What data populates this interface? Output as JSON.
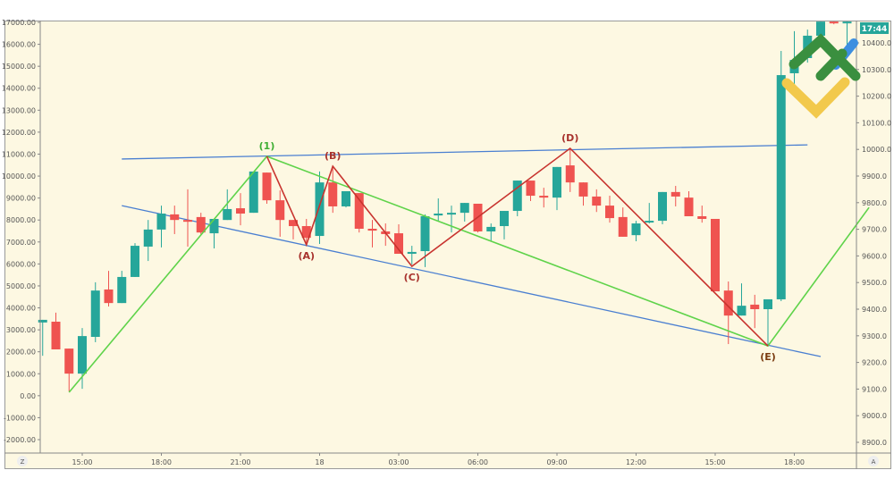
{
  "chart_data": {
    "type": "candlestick",
    "grid": false,
    "left_axis": {
      "ticks": [
        "17000.00",
        "16000.00",
        "15000.00",
        "14000.00",
        "13000.00",
        "12000.00",
        "11000.00",
        "10000.00",
        "9000.00",
        "8000.00",
        "7000.00",
        "6000.00",
        "5000.00",
        "4000.00",
        "3000.00",
        "2000.00",
        "1000.00",
        "0.00",
        "-1000.00",
        "-2000.00"
      ],
      "range": [
        -2000,
        17000
      ]
    },
    "right_axis": {
      "ticks": [
        "10400.0",
        "10300.0",
        "10200.0",
        "10100.0",
        "10000.0",
        "9900.0",
        "9800.0",
        "9700.0",
        "9600.0",
        "9500.0",
        "9400.0",
        "9300.0",
        "9200.0",
        "9100.0",
        "9000.0",
        "8900.0"
      ],
      "range": [
        8900,
        10400
      ]
    },
    "time_axis": {
      "ticks": [
        {
          "t": "17 15:00",
          "label": "15:00"
        },
        {
          "t": "17 18:00",
          "label": "18:00"
        },
        {
          "t": "17 21:00",
          "label": "21:00"
        },
        {
          "t": "18 00:00",
          "label": "18"
        },
        {
          "t": "18 03:00",
          "label": "03:00"
        },
        {
          "t": "18 06:00",
          "label": "06:00"
        },
        {
          "t": "18 09:00",
          "label": "09:00"
        },
        {
          "t": "18 12:00",
          "label": "12:00"
        },
        {
          "t": "18 15:00",
          "label": "15:00"
        },
        {
          "t": "18 18:00",
          "label": "18:00"
        }
      ]
    },
    "price_tag": "17:44",
    "corner_left": "Z",
    "corner_right": "A",
    "colors": {
      "up": "#26a69a",
      "down": "#ef5350",
      "trendline": "#4a7fd1",
      "wave_green": "#5fd34a",
      "wave_red": "#c8342f",
      "background": "#fdf8e2"
    },
    "candles_fields": [
      "time",
      "open",
      "high",
      "low",
      "close"
    ],
    "candles": [
      [
        "17 13:30",
        9350,
        9360,
        9225,
        9360
      ],
      [
        "17 14:00",
        9353,
        9387,
        9249,
        9249
      ],
      [
        "17 14:30",
        9252,
        9252,
        9091,
        9158
      ],
      [
        "17 15:00",
        9158,
        9329,
        9101,
        9299
      ],
      [
        "17 15:30",
        9296,
        9501,
        9276,
        9470
      ],
      [
        "17 16:00",
        9474,
        9544,
        9410,
        9423
      ],
      [
        "17 16:30",
        9423,
        9544,
        9423,
        9521
      ],
      [
        "17 17:00",
        9521,
        9648,
        9521,
        9638
      ],
      [
        "17 17:30",
        9635,
        9735,
        9581,
        9699
      ],
      [
        "17 18:00",
        9699,
        9789,
        9632,
        9759
      ],
      [
        "17 18:30",
        9756,
        9789,
        9682,
        9735
      ],
      [
        "17 19:00",
        9735,
        9850,
        9635,
        9729
      ],
      [
        "17 19:30",
        9746,
        9762,
        9682,
        9688
      ],
      [
        "17 20:00",
        9685,
        9739,
        9628,
        9739
      ],
      [
        "17 20:30",
        9735,
        9850,
        9735,
        9776
      ],
      [
        "17 21:00",
        9779,
        9836,
        9715,
        9759
      ],
      [
        "17 21:30",
        9762,
        9917,
        9762,
        9917
      ],
      [
        "17 22:00",
        9913,
        9913,
        9796,
        9809
      ],
      [
        "17 22:30",
        9809,
        9846,
        9672,
        9735
      ],
      [
        "17 23:00",
        9735,
        9735,
        9662,
        9712
      ],
      [
        "17 23:30",
        9712,
        9739,
        9645,
        9668
      ],
      [
        "18 00:00",
        9675,
        9917,
        9645,
        9876
      ],
      [
        "18 00:30",
        9876,
        9937,
        9762,
        9786
      ],
      [
        "18 01:00",
        9786,
        9843,
        9782,
        9843
      ],
      [
        "18 01:30",
        9836,
        9836,
        9688,
        9702
      ],
      [
        "18 02:00",
        9702,
        9735,
        9632,
        9695
      ],
      [
        "18 02:30",
        9692,
        9722,
        9638,
        9682
      ],
      [
        "18 03:00",
        9685,
        9719,
        9608,
        9608
      ],
      [
        "18 03:30",
        9608,
        9638,
        9568,
        9615
      ],
      [
        "18 04:00",
        9618,
        9756,
        9558,
        9749
      ],
      [
        "18 04:30",
        9752,
        9816,
        9732,
        9759
      ],
      [
        "18 05:00",
        9756,
        9789,
        9688,
        9762
      ],
      [
        "18 05:30",
        9762,
        9799,
        9729,
        9799
      ],
      [
        "18 06:00",
        9796,
        9796,
        9688,
        9692
      ],
      [
        "18 06:30",
        9692,
        9722,
        9655,
        9709
      ],
      [
        "18 07:00",
        9712,
        9769,
        9662,
        9769
      ],
      [
        "18 07:30",
        9769,
        9883,
        9749,
        9883
      ],
      [
        "18 08:00",
        9883,
        9883,
        9806,
        9826
      ],
      [
        "18 08:30",
        9826,
        9856,
        9782,
        9819
      ],
      [
        "18 09:00",
        9819,
        9934,
        9772,
        9934
      ],
      [
        "18 09:30",
        9940,
        10004,
        9840,
        9876
      ],
      [
        "18 10:00",
        9876,
        9876,
        9789,
        9823
      ],
      [
        "18 10:30",
        9823,
        9850,
        9765,
        9789
      ],
      [
        "18 11:00",
        9789,
        9826,
        9725,
        9742
      ],
      [
        "18 11:30",
        9746,
        9782,
        9672,
        9672
      ],
      [
        "18 12:00",
        9678,
        9732,
        9655,
        9722
      ],
      [
        "18 12:30",
        9729,
        9799,
        9722,
        9732
      ],
      [
        "18 13:00",
        9732,
        9840,
        9719,
        9840
      ],
      [
        "18 13:30",
        9840,
        9863,
        9786,
        9823
      ],
      [
        "18 14:00",
        9819,
        9843,
        9749,
        9749
      ],
      [
        "18 14:30",
        9749,
        9789,
        9725,
        9739
      ],
      [
        "18 15:00",
        9739,
        9739,
        9467,
        9467
      ],
      [
        "18 15:30",
        9470,
        9504,
        9269,
        9376
      ],
      [
        "18 16:00",
        9376,
        9497,
        9376,
        9413
      ],
      [
        "18 16:30",
        9417,
        9454,
        9329,
        9400
      ],
      [
        "18 17:00",
        9400,
        9437,
        9262,
        9437
      ],
      [
        "18 17:30",
        9437,
        10370,
        9430,
        10279
      ],
      [
        "18 18:00",
        10286,
        10444,
        10215,
        10336
      ],
      [
        "18 18:30",
        10343,
        10450,
        10326,
        10427
      ],
      [
        "18 19:00",
        10427,
        10480,
        10427,
        10480
      ],
      [
        "18 19:30",
        10480,
        10480,
        10470,
        10474
      ],
      [
        "18 20:00",
        10475,
        10480,
        10360,
        10480
      ]
    ],
    "trendlines": [
      {
        "points": [
          {
            "t": "17 16:30",
            "p": 9964
          },
          {
            "t": "18 18:30",
            "p": 10017
          }
        ]
      },
      {
        "points": [
          {
            "t": "17 16:30",
            "p": 9789
          },
          {
            "t": "18 19:00",
            "p": 9222
          }
        ]
      }
    ],
    "green_wave": [
      {
        "t": "17 14:30",
        "p": 9088
      },
      {
        "t": "17 22:00",
        "p": 9974
      },
      {
        "t": "18 17:00",
        "p": 9262
      },
      {
        "t": "18 20:50",
        "p": 9782
      }
    ],
    "red_wave": [
      {
        "t": "17 22:00",
        "p": 9974
      },
      {
        "t": "17 23:30",
        "p": 9642
      },
      {
        "t": "18 00:30",
        "p": 9937
      },
      {
        "t": "18 03:30",
        "p": 9561
      },
      {
        "t": "18 09:30",
        "p": 10004
      },
      {
        "t": "18 17:00",
        "p": 9262
      }
    ],
    "wave_labels": [
      {
        "text": "(1)",
        "t": "17 22:00",
        "p": 9974,
        "pos": "above",
        "color": "green"
      },
      {
        "text": "(A)",
        "t": "17 23:30",
        "p": 9642,
        "pos": "below",
        "color": "red"
      },
      {
        "text": "(B)",
        "t": "18 00:30",
        "p": 9937,
        "pos": "above",
        "color": "red"
      },
      {
        "text": "(C)",
        "t": "18 03:30",
        "p": 9561,
        "pos": "below",
        "color": "red"
      },
      {
        "text": "(D)",
        "t": "18 09:30",
        "p": 10004,
        "pos": "above",
        "color": "red"
      },
      {
        "text": "(E)",
        "t": "18 17:00",
        "p": 9262,
        "pos": "below",
        "color": "brown"
      }
    ]
  }
}
